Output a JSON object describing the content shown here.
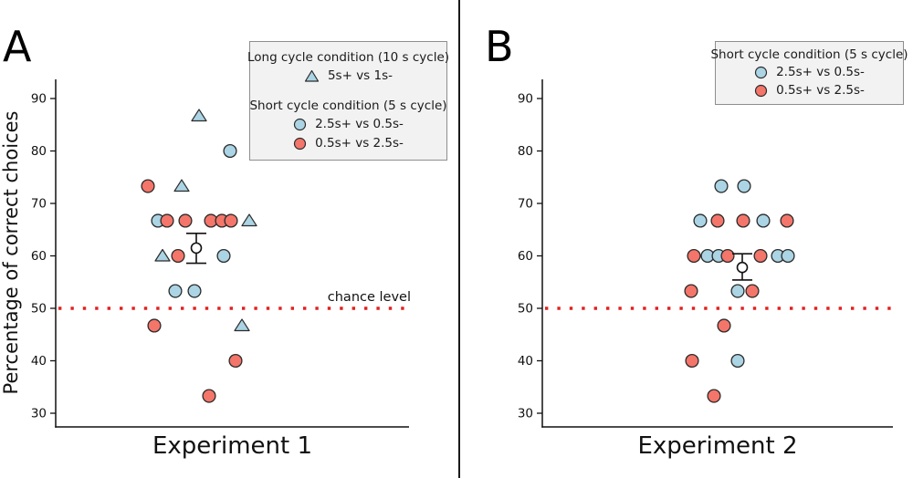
{
  "colors": {
    "blue": "#abd4e4",
    "red": "#f4756a",
    "edge": "#2b2b2b",
    "chance": "#e12120",
    "legend_bg": "#f2f2f2",
    "legend_border": "#8e8e8e",
    "axis": "#111111",
    "mean_fill": "#ffffff"
  },
  "figure": {
    "ylabel": "Percentage of correct choices",
    "panel_a": {
      "letter": "A",
      "xlabel": "Experiment 1",
      "chance_label": "chance level"
    },
    "panel_b": {
      "letter": "B",
      "xlabel": "Experiment 2"
    }
  },
  "legends": {
    "a": {
      "group1_title": "Long cycle condition (10 s cycle)",
      "group1_entries": [
        {
          "marker": "triangle-blue",
          "label": "5s+ vs 1s-"
        }
      ],
      "group2_title": "Short cycle condition (5 s cycle)",
      "group2_entries": [
        {
          "marker": "circle-blue",
          "label": "2.5s+ vs 0.5s-"
        },
        {
          "marker": "circle-red",
          "label": "0.5s+ vs 2.5s-"
        }
      ]
    },
    "b": {
      "title": "Short cycle condition (5 s cycle)",
      "entries": [
        {
          "marker": "circle-blue",
          "label": "2.5s+ vs 0.5s-"
        },
        {
          "marker": "circle-red",
          "label": "0.5s+ vs 2.5s-"
        }
      ]
    }
  },
  "chart_data": [
    {
      "type": "scatter",
      "panel": "A",
      "xlabel": "Experiment 1",
      "ylabel": "Percentage of correct choices",
      "ylim": [
        27,
        93
      ],
      "yticks": [
        30,
        40,
        50,
        60,
        70,
        80,
        90
      ],
      "x_axis": "categorical (jittered), x values below are pixel offsets within panel",
      "chance_level": 50,
      "grid": false,
      "series": [
        {
          "name": "5s+ vs 1s-",
          "marker": "triangle",
          "color": "blue",
          "points": [
            [
              218,
              86.7
            ],
            [
              199,
              73.3
            ],
            [
              273,
              66.7
            ],
            [
              178,
              60
            ],
            [
              265,
              46.7
            ]
          ]
        },
        {
          "name": "2.5s+ vs 0.5s-",
          "marker": "circle",
          "color": "blue",
          "points": [
            [
              252,
              80
            ],
            [
              173,
              66.7
            ],
            [
              245,
              60
            ],
            [
              192,
              53.3
            ],
            [
              213,
              53.3
            ]
          ]
        },
        {
          "name": "0.5s+ vs 2.5s-",
          "marker": "circle",
          "color": "red",
          "points": [
            [
              162,
              73.3
            ],
            [
              183,
              66.7
            ],
            [
              203,
              66.7
            ],
            [
              231,
              66.7
            ],
            [
              243,
              66.7
            ],
            [
              253,
              66.7
            ],
            [
              195,
              60
            ],
            [
              169,
              46.7
            ],
            [
              258,
              40
            ],
            [
              229,
              33.3
            ]
          ]
        }
      ],
      "mean": {
        "x": 215,
        "value": 61.5,
        "upper": 64.3,
        "lower": 58.6
      }
    },
    {
      "type": "scatter",
      "panel": "B",
      "xlabel": "Experiment 2",
      "ylabel": "Percentage of correct choices",
      "ylim": [
        27,
        93
      ],
      "yticks": [
        30,
        40,
        50,
        60,
        70,
        80,
        90
      ],
      "x_axis": "categorical (jittered), x values below are pixel offsets within panel",
      "chance_level": 50,
      "grid": false,
      "series": [
        {
          "name": "2.5s+ vs 0.5s-",
          "marker": "circle",
          "color": "blue",
          "points": [
            [
              287,
              73.3
            ],
            [
              312,
              73.3
            ],
            [
              264,
              66.7
            ],
            [
              333,
              66.7
            ],
            [
              272,
              60
            ],
            [
              284,
              60
            ],
            [
              349,
              60
            ],
            [
              360,
              60
            ],
            [
              305,
              53.3
            ],
            [
              305,
              40
            ]
          ]
        },
        {
          "name": "0.5s+ vs 2.5s-",
          "marker": "circle",
          "color": "red",
          "points": [
            [
              283,
              66.7
            ],
            [
              311,
              66.7
            ],
            [
              359,
              66.7
            ],
            [
              257,
              60
            ],
            [
              294,
              60
            ],
            [
              330,
              60
            ],
            [
              254,
              53.3
            ],
            [
              321,
              53.3
            ],
            [
              290,
              46.7
            ],
            [
              255,
              40
            ],
            [
              279,
              33.3
            ]
          ]
        }
      ],
      "mean": {
        "x": 310,
        "value": 57.8,
        "upper": 60.4,
        "lower": 55.4
      }
    }
  ]
}
